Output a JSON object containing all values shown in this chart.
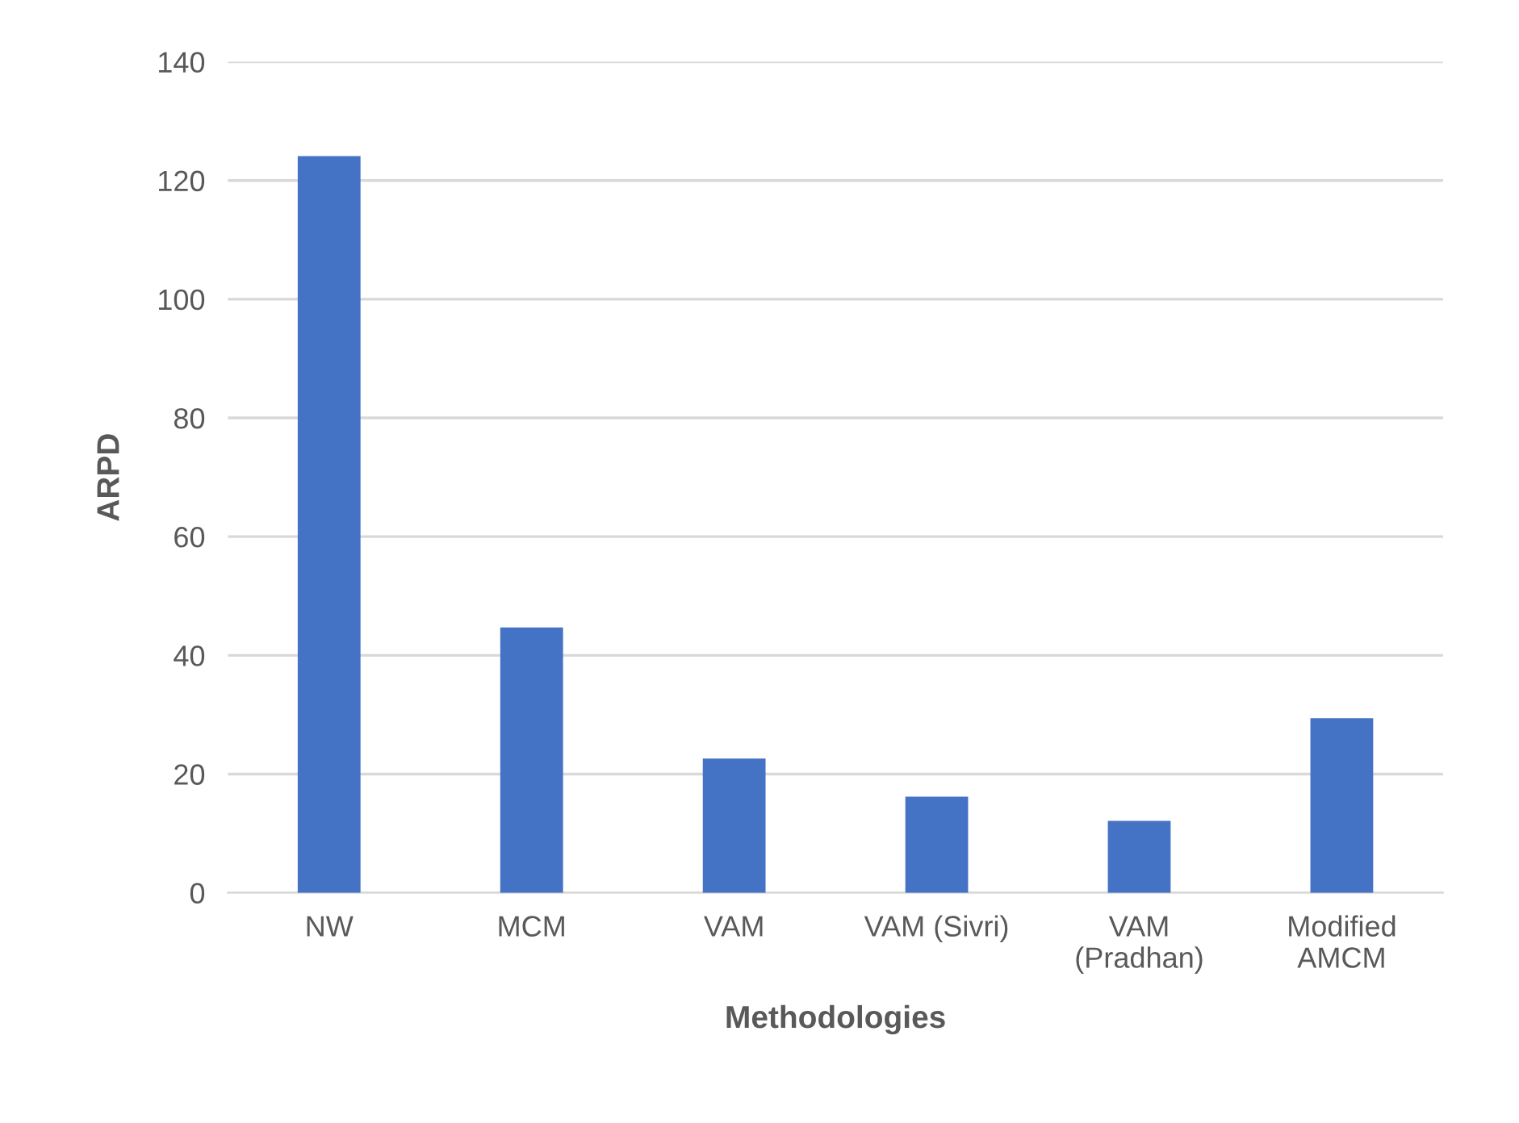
{
  "chart_data": {
    "type": "bar",
    "xlabel": "Methodologies",
    "ylabel": "ARPD",
    "categories": [
      "NW",
      "MCM",
      "VAM",
      "VAM (Sivri)",
      "VAM\n(Pradhan)",
      "Modified\nAMCM"
    ],
    "values": [
      124.1,
      44.7,
      22.6,
      16.2,
      12.1,
      29.4
    ],
    "color": "#4472c4",
    "ylim": [
      0,
      140
    ],
    "yticks": [
      0,
      20,
      40,
      60,
      80,
      100,
      120,
      140
    ],
    "grid": "y"
  }
}
